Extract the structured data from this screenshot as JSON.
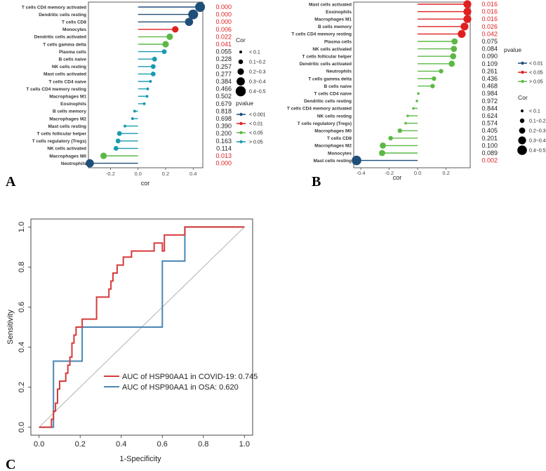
{
  "chart_data": [
    {
      "panel": "A",
      "type": "lollipop",
      "xlabel": "cor",
      "xlim": [
        -0.36,
        0.47
      ],
      "xticks": [
        "-0.2",
        "0.0",
        "0.2",
        "0.4"
      ],
      "xtick_values": [
        -0.2,
        0.0,
        0.2,
        0.4
      ],
      "rows": [
        {
          "label": "T cells CD4 memory activated",
          "cor": 0.45,
          "p": "0.000"
        },
        {
          "label": "Dendritic cells resting",
          "cor": 0.4,
          "p": "0.000"
        },
        {
          "label": "T cells CD8",
          "cor": 0.37,
          "p": "0.000"
        },
        {
          "label": "Monocytes",
          "cor": 0.27,
          "p": "0.006"
        },
        {
          "label": "Dendritic cells activated",
          "cor": 0.23,
          "p": "0.022"
        },
        {
          "label": "T cells gamma delta",
          "cor": 0.2,
          "p": "0.041"
        },
        {
          "label": "Plasma cells",
          "cor": 0.19,
          "p": "0.055"
        },
        {
          "label": "B cells naive",
          "cor": 0.12,
          "p": "0.228"
        },
        {
          "label": "NK cells resting",
          "cor": 0.11,
          "p": "0.257"
        },
        {
          "label": "Mast cells activated",
          "cor": 0.11,
          "p": "0.277"
        },
        {
          "label": "T cells CD4 naive",
          "cor": 0.09,
          "p": "0.384"
        },
        {
          "label": "T cells CD4 memory resting",
          "cor": 0.07,
          "p": "0.466"
        },
        {
          "label": "Macrophages M1",
          "cor": 0.065,
          "p": "0.502"
        },
        {
          "label": "Eosinophils",
          "cor": 0.045,
          "p": "0.679"
        },
        {
          "label": "B cells memory",
          "cor": -0.025,
          "p": "0.818"
        },
        {
          "label": "Macrophages M2",
          "cor": -0.04,
          "p": "0.698"
        },
        {
          "label": "Mast cells resting",
          "cor": -0.095,
          "p": "0.390"
        },
        {
          "label": "T cells follicular helper",
          "cor": -0.135,
          "p": "0.200"
        },
        {
          "label": "T cells regulatory (Tregs)",
          "cor": -0.145,
          "p": "0.163"
        },
        {
          "label": "NK cells activated",
          "cor": -0.16,
          "p": "0.114"
        },
        {
          "label": "Macrophages M0",
          "cor": -0.25,
          "p": "0.013"
        },
        {
          "label": "Neutrophils",
          "cor": -0.35,
          "p": "0.000"
        }
      ],
      "legend_cor": {
        "title": "Cor",
        "items": [
          "< 0.1",
          "0.1~0.2",
          "0.2~0.3",
          "0.3~0.4",
          "0.4~0.5"
        ]
      },
      "legend_p": {
        "title": "pvalue",
        "items": [
          {
            "label": "< 0.001",
            "color": "#1f4e79"
          },
          {
            "label": "< 0.01",
            "color": "#e02020"
          },
          {
            "label": "< 0.05",
            "color": "#5cb845"
          },
          {
            "label": "> 0.05",
            "color": "#1a9ab2"
          }
        ]
      }
    },
    {
      "panel": "B",
      "type": "lollipop",
      "xlabel": "cor",
      "xlim": [
        -0.45,
        0.37
      ],
      "xticks": [
        "-0.4",
        "-0.2",
        "0.0",
        "0.2"
      ],
      "xtick_values": [
        -0.4,
        -0.2,
        0.0,
        0.2
      ],
      "rows": [
        {
          "label": "Mast cells activated",
          "cor": 0.35,
          "p": "0.016"
        },
        {
          "label": "Eosinophils",
          "cor": 0.35,
          "p": "0.016"
        },
        {
          "label": "Macrophages M1",
          "cor": 0.35,
          "p": "0.016"
        },
        {
          "label": "B cells memory",
          "cor": 0.33,
          "p": "0.026"
        },
        {
          "label": "T cells CD4 memory resting",
          "cor": 0.31,
          "p": "0.042"
        },
        {
          "label": "Plasma cells",
          "cor": 0.26,
          "p": "0.075"
        },
        {
          "label": "NK cells activated",
          "cor": 0.255,
          "p": "0.084"
        },
        {
          "label": "T cells follicular helper",
          "cor": 0.25,
          "p": "0.090"
        },
        {
          "label": "Dendritic cells activated",
          "cor": 0.24,
          "p": "0.109"
        },
        {
          "label": "Neutrophils",
          "cor": 0.165,
          "p": "0.261"
        },
        {
          "label": "T cells gamma delta",
          "cor": 0.115,
          "p": "0.436"
        },
        {
          "label": "B cells naive",
          "cor": 0.105,
          "p": "0.468"
        },
        {
          "label": "T cells CD4 naive",
          "cor": 0.005,
          "p": "0.984"
        },
        {
          "label": "Dendritic cells resting",
          "cor": -0.005,
          "p": "0.972"
        },
        {
          "label": "T cells CD4 memory activated",
          "cor": -0.03,
          "p": "0.844"
        },
        {
          "label": "NK cells resting",
          "cor": -0.07,
          "p": "0.624"
        },
        {
          "label": "T cells regulatory (Tregs)",
          "cor": -0.085,
          "p": "0.574"
        },
        {
          "label": "Macrophages M0",
          "cor": -0.125,
          "p": "0.405"
        },
        {
          "label": "T cells CD8",
          "cor": -0.19,
          "p": "0.201"
        },
        {
          "label": "Macrophages M2",
          "cor": -0.245,
          "p": "0.100"
        },
        {
          "label": "Monocytes",
          "cor": -0.25,
          "p": "0.089"
        },
        {
          "label": "Mast cells resting",
          "cor": -0.43,
          "p": "0.002"
        }
      ],
      "legend_p": {
        "title": "pvalue",
        "items": [
          {
            "label": "< 0.01",
            "color": "#1f4e79"
          },
          {
            "label": "< 0.05",
            "color": "#e02020"
          },
          {
            "label": "> 0.05",
            "color": "#5cb845"
          }
        ]
      },
      "legend_cor": {
        "title": "Cor",
        "items": [
          "< 0.1",
          "0.1~0.2",
          "0.2~0.3",
          "0.3~0.4",
          "0.4~0.5"
        ]
      }
    },
    {
      "panel": "C",
      "type": "line",
      "xlabel": "1-Specificity",
      "ylabel": "Sensitivity",
      "xlim": [
        -0.04,
        1.04
      ],
      "ylim": [
        -0.04,
        1.04
      ],
      "ticks": [
        "0.0",
        "0.2",
        "0.4",
        "0.6",
        "0.8",
        "1.0"
      ],
      "tick_values": [
        0,
        0.2,
        0.4,
        0.6,
        0.8,
        1.0
      ],
      "series": [
        {
          "name": "AUC of HSP90AA1 in COVID-19: 0.745",
          "color": "#d73a3a",
          "points": [
            [
              0,
              0
            ],
            [
              0.06,
              0
            ],
            [
              0.06,
              0.04
            ],
            [
              0.07,
              0.04
            ],
            [
              0.07,
              0.08
            ],
            [
              0.08,
              0.08
            ],
            [
              0.08,
              0.12
            ],
            [
              0.09,
              0.12
            ],
            [
              0.09,
              0.19
            ],
            [
              0.1,
              0.19
            ],
            [
              0.1,
              0.23
            ],
            [
              0.13,
              0.23
            ],
            [
              0.13,
              0.27
            ],
            [
              0.14,
              0.27
            ],
            [
              0.14,
              0.31
            ],
            [
              0.15,
              0.31
            ],
            [
              0.15,
              0.35
            ],
            [
              0.16,
              0.35
            ],
            [
              0.16,
              0.42
            ],
            [
              0.17,
              0.42
            ],
            [
              0.17,
              0.46
            ],
            [
              0.18,
              0.46
            ],
            [
              0.18,
              0.5
            ],
            [
              0.21,
              0.5
            ],
            [
              0.21,
              0.54
            ],
            [
              0.28,
              0.54
            ],
            [
              0.28,
              0.65
            ],
            [
              0.34,
              0.65
            ],
            [
              0.34,
              0.69
            ],
            [
              0.35,
              0.69
            ],
            [
              0.35,
              0.73
            ],
            [
              0.36,
              0.73
            ],
            [
              0.36,
              0.77
            ],
            [
              0.38,
              0.77
            ],
            [
              0.38,
              0.81
            ],
            [
              0.41,
              0.81
            ],
            [
              0.41,
              0.85
            ],
            [
              0.45,
              0.85
            ],
            [
              0.45,
              0.88
            ],
            [
              0.56,
              0.88
            ],
            [
              0.56,
              0.92
            ],
            [
              0.6,
              0.92
            ],
            [
              0.6,
              0.88
            ],
            [
              0.61,
              0.88
            ],
            [
              0.61,
              0.96
            ],
            [
              0.71,
              0.96
            ],
            [
              0.71,
              1.0
            ],
            [
              1.0,
              1.0
            ]
          ]
        },
        {
          "name": "AUC of HSP90AA1 in OSA: 0.620",
          "color": "#4a86b4",
          "points": [
            [
              0,
              0
            ],
            [
              0.07,
              0
            ],
            [
              0.07,
              0.33
            ],
            [
              0.21,
              0.33
            ],
            [
              0.21,
              0.5
            ],
            [
              0.6,
              0.5
            ],
            [
              0.6,
              0.83
            ],
            [
              0.71,
              0.83
            ],
            [
              0.71,
              1.0
            ],
            [
              1.0,
              1.0
            ]
          ]
        },
        {
          "name": "reference",
          "color": "#aaaaaa",
          "points": [
            [
              0,
              0
            ],
            [
              1,
              1
            ]
          ]
        }
      ]
    }
  ],
  "panel_letters": {
    "a": "A",
    "b": "B",
    "c": "C"
  }
}
